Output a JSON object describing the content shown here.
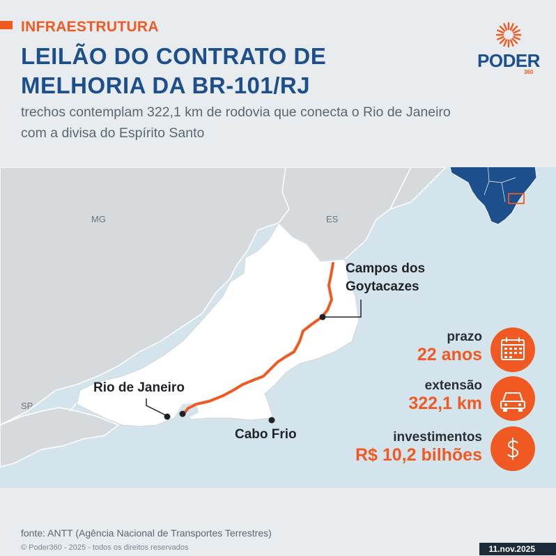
{
  "header": {
    "tag": "INFRAESTRUTURA",
    "title_line1": "LEILÃO DO CONTRATO DE",
    "title_line2": "MELHORIA DA BR-101/RJ",
    "subtitle": "trechos contemplam 322,1 km de rodovia que conecta o Rio de Janeiro com a divisa do Espírito Santo"
  },
  "logo": {
    "name": "PODER",
    "sub": "360"
  },
  "map": {
    "states": {
      "mg": "MG",
      "es": "ES",
      "sp": "SP"
    },
    "cities": {
      "campos": "Campos dos Goytacazes",
      "rio": "Rio de Janeiro",
      "cabo_frio": "Cabo Frio"
    }
  },
  "info": {
    "prazo_label": "prazo",
    "prazo_value": "22 anos",
    "extensao_label": "extensão",
    "extensao_value": "322,1 km",
    "invest_label": "investimentos",
    "invest_value": "R$ 10,2 bilhões"
  },
  "footer": {
    "source": "fonte: ANTT (Agência Nacional de Transportes Terrestres)",
    "copyright": "© Poder360 - 2025 - todos os direitos reservados",
    "date": "11.nov.2025"
  },
  "colors": {
    "accent": "#f05a22",
    "navy": "#1d4f8c",
    "sea": "#d4e4ec",
    "land": "#d6dadd"
  }
}
